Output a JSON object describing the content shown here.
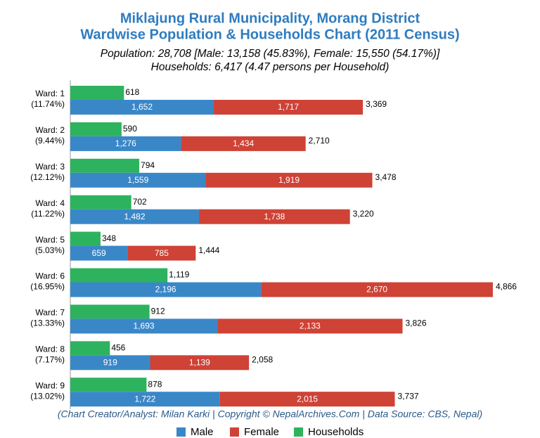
{
  "chart_data": {
    "type": "bar",
    "orientation": "horizontal",
    "title": [
      "Miklajung Rural Municipality, Morang District",
      "Wardwise Population & Households Chart (2011 Census)"
    ],
    "subtitle": [
      "Population: 28,708 [Male: 13,158 (45.83%), Female: 15,550 (54.17%)]",
      "Households: 6,417 (4.47 persons per Household)"
    ],
    "categories": [
      "Ward: 1",
      "Ward: 2",
      "Ward: 3",
      "Ward: 4",
      "Ward: 5",
      "Ward: 6",
      "Ward: 7",
      "Ward: 8",
      "Ward: 9"
    ],
    "category_shares": [
      "(11.74%)",
      "(9.44%)",
      "(12.12%)",
      "(11.22%)",
      "(5.03%)",
      "(16.95%)",
      "(13.33%)",
      "(7.17%)",
      "(13.02%)"
    ],
    "series": [
      {
        "name": "Male",
        "color": "#3a87c8",
        "values": [
          1652,
          1276,
          1559,
          1482,
          659,
          2196,
          1693,
          919,
          1722
        ],
        "value_labels": [
          "1,652",
          "1,276",
          "1,559",
          "1,482",
          "659",
          "2,196",
          "1,693",
          "919",
          "1,722"
        ]
      },
      {
        "name": "Female",
        "color": "#cf4236",
        "values": [
          1717,
          1434,
          1919,
          1738,
          785,
          2670,
          2133,
          1139,
          2015
        ],
        "value_labels": [
          "1,717",
          "1,434",
          "1,919",
          "1,738",
          "785",
          "2,670",
          "2,133",
          "1,139",
          "2,015"
        ]
      },
      {
        "name": "Households",
        "color": "#2db35d",
        "values": [
          618,
          590,
          794,
          702,
          348,
          1119,
          912,
          456,
          878
        ],
        "value_labels": [
          "618",
          "590",
          "794",
          "702",
          "348",
          "1,119",
          "912",
          "456",
          "878"
        ]
      }
    ],
    "totals": {
      "values": [
        3369,
        2710,
        3478,
        3220,
        1444,
        4866,
        3826,
        2058,
        3737
      ],
      "value_labels": [
        "3,369",
        "2,710",
        "3,478",
        "3,220",
        "1,444",
        "4,866",
        "3,826",
        "2,058",
        "3,737"
      ]
    },
    "xlim": [
      0,
      5000
    ],
    "caption": "(Chart Creator/Analyst: Milan Karki | Copyright © NepalArchives.Com | Data Source: CBS, Nepal)",
    "legend": "bottom"
  }
}
